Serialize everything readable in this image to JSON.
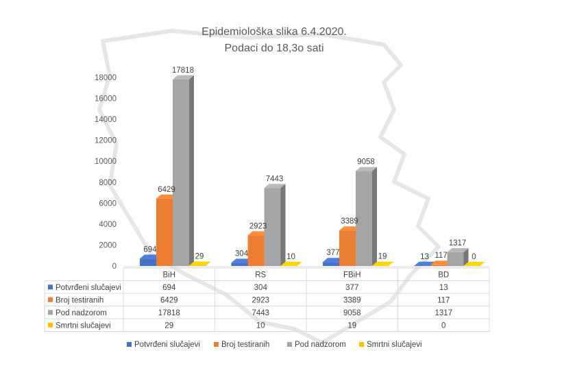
{
  "chart_data": {
    "type": "bar",
    "title": "Epidemiološka slika 6.4.2020.",
    "subtitle": "Podaci do 18,3o sati",
    "categories": [
      "BiH",
      "RS",
      "FBiH",
      "BD"
    ],
    "series": [
      {
        "name": "Potvrđeni slučajevi",
        "color": "#4472c4",
        "values": [
          694,
          304,
          377,
          13
        ]
      },
      {
        "name": "Broj testiranih",
        "color": "#ed7d31",
        "values": [
          6429,
          2923,
          3389,
          117
        ]
      },
      {
        "name": "Pod nadzorom",
        "color": "#a5a5a5",
        "values": [
          17818,
          7443,
          9058,
          1317
        ]
      },
      {
        "name": "Smrtni slučajevi",
        "color": "#ffc000",
        "values": [
          29,
          10,
          19,
          0
        ]
      }
    ],
    "ylim": [
      0,
      18000
    ],
    "yticks": [
      0,
      2000,
      4000,
      6000,
      8000,
      10000,
      12000,
      14000,
      16000,
      18000
    ],
    "grid": false,
    "legend": "bottom",
    "data_table": true,
    "bar_style": "3d"
  }
}
